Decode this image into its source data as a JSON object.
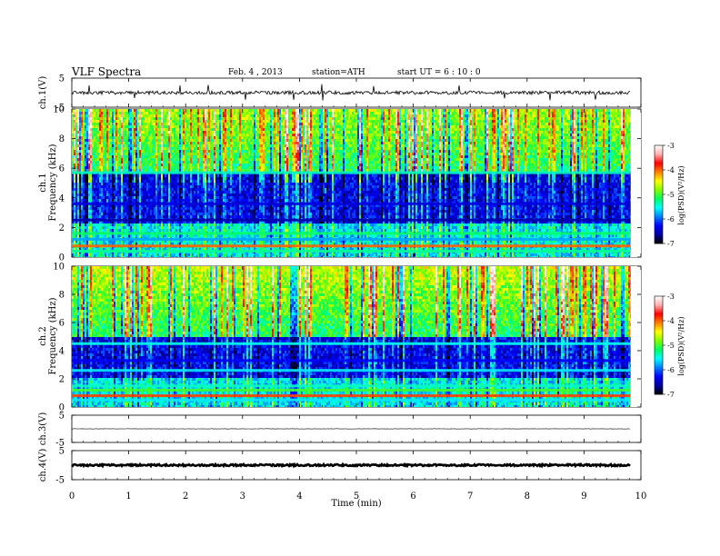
{
  "header": {
    "title": "VLF  Spectra",
    "date": "Feb. 4  , 2013",
    "station": "station=ATH",
    "start": "start  UT  =   6  : 10 : 0"
  },
  "chart_data": {
    "type": "heatmap",
    "title": "VLF  Spectra",
    "xlabel": "Time  (min)",
    "x_ticks": [
      "0",
      "1",
      "2",
      "3",
      "4",
      "5",
      "6",
      "7",
      "8",
      "9",
      "10"
    ],
    "xlim": [
      0,
      10
    ],
    "data_end_min": 9.82,
    "panels": [
      {
        "id": "ch1_waveform",
        "type": "line",
        "ylabel": "ch.1(V)",
        "y_ticks": [
          "5",
          "-5"
        ],
        "ylim": [
          -5,
          5
        ],
        "baseline": 0,
        "noise_amplitude": 0.6,
        "spikes_min": [
          0.3,
          1.1,
          1.9,
          2.4,
          3.05,
          3.9,
          4.4,
          5.3,
          6.8,
          7.6,
          8.4,
          9.2
        ]
      },
      {
        "id": "ch1_spectrogram",
        "type": "heatmap",
        "ylabel": "ch.1",
        "ylabel2": "Frequency  (kHz)",
        "y_ticks": [
          "0",
          "2",
          "4",
          "6",
          "8",
          "10"
        ],
        "ylim": [
          0,
          10
        ],
        "seed": 7,
        "profile_ylim": [
          2.2,
          5.8
        ],
        "bands": [
          {
            "f": 0.4,
            "level": -5.3
          },
          {
            "f": 0.75,
            "level": -4.0
          },
          {
            "f": 1.2,
            "level": -5.8
          },
          {
            "f": 1.6,
            "level": -5.2
          },
          {
            "f": 2.5,
            "level": -6.6
          },
          {
            "f": 3.6,
            "level": -6.4
          },
          {
            "f": 5.7,
            "level": -5.4
          }
        ]
      },
      {
        "id": "ch2_spectrogram",
        "type": "heatmap",
        "ylabel": "ch.2",
        "ylabel2": "Frequency  (kHz)",
        "y_ticks": [
          "0",
          "2",
          "4",
          "6",
          "8",
          "10"
        ],
        "ylim": [
          0,
          10
        ],
        "seed": 11,
        "profile_ylim": [
          2.0,
          5.0
        ],
        "bands": [
          {
            "f": 0.5,
            "level": -5.6
          },
          {
            "f": 0.8,
            "level": -3.9
          },
          {
            "f": 1.2,
            "level": -5.0
          },
          {
            "f": 1.5,
            "level": -5.4
          },
          {
            "f": 2.6,
            "level": -5.6
          },
          {
            "f": 3.3,
            "level": -6.3
          },
          {
            "f": 4.5,
            "level": -5.5
          }
        ]
      },
      {
        "id": "ch3_waveform",
        "type": "line",
        "ylabel": "ch.3(V)",
        "y_ticks": [
          "5",
          "-5"
        ],
        "ylim": [
          -5,
          5
        ],
        "baseline": 0,
        "noise_amplitude": 0.08,
        "spikes_min": []
      },
      {
        "id": "ch4_waveform",
        "type": "line",
        "ylabel": "ch.4(V)",
        "y_ticks": [
          "5",
          "-5"
        ],
        "ylim": [
          -5,
          5
        ],
        "baseline": 0,
        "noise_amplitude": 0.3,
        "spikes_min": []
      }
    ],
    "colorbar": {
      "label": "log(PSD)(V²/Hz)",
      "ticks": [
        "-3",
        "-4",
        "-5",
        "-6",
        "-7"
      ],
      "range": [
        -7,
        -3
      ],
      "colors": [
        "#000000",
        "#0000a0",
        "#0000ff",
        "#0080ff",
        "#00ffff",
        "#00ff60",
        "#80ff00",
        "#ffff00",
        "#ff8000",
        "#ff0000",
        "#ffb0b0",
        "#ffffff"
      ]
    }
  }
}
